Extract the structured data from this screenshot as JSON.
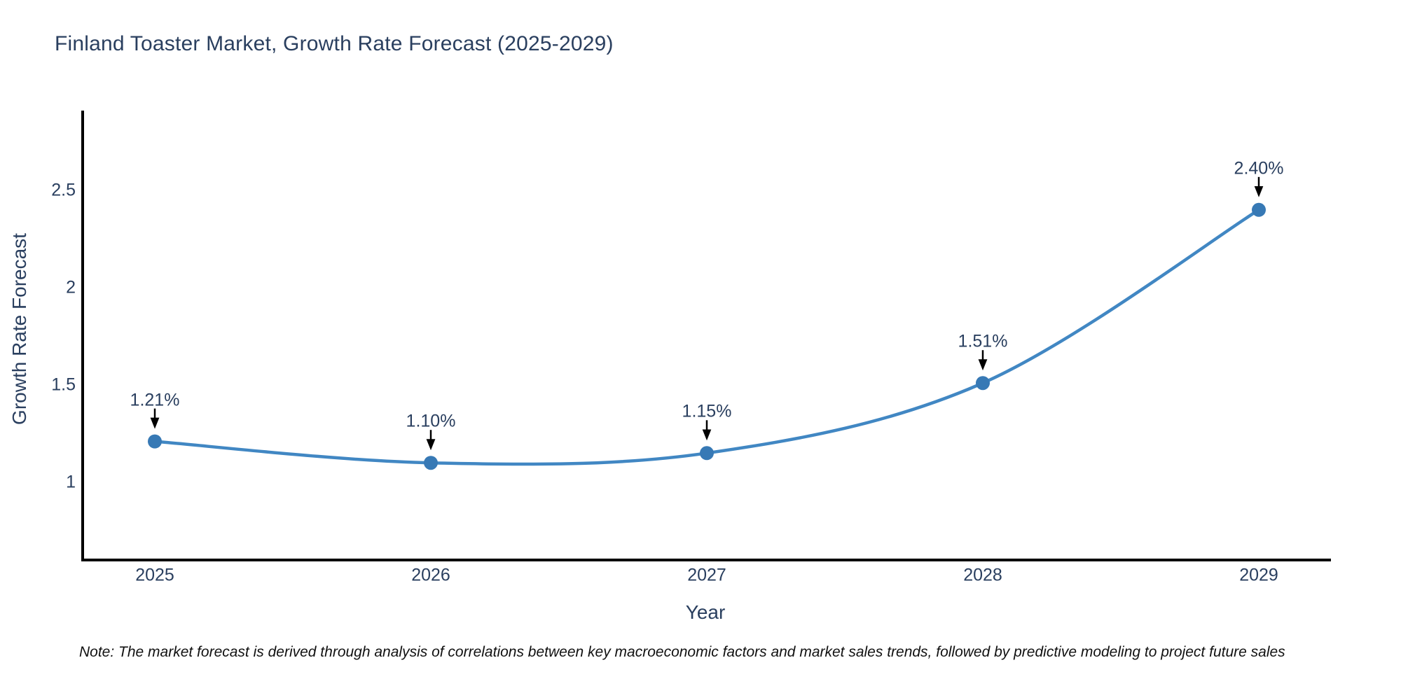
{
  "chart_data": {
    "type": "line",
    "title": "Finland Toaster Market, Growth Rate Forecast (2025-2029)",
    "xlabel": "Year",
    "ylabel": "Growth Rate Forecast",
    "x": [
      2025,
      2026,
      2027,
      2028,
      2029
    ],
    "y": [
      1.21,
      1.1,
      1.15,
      1.51,
      2.4
    ],
    "point_labels": [
      "1.21%",
      "1.10%",
      "1.15%",
      "1.51%",
      "2.40%"
    ],
    "line_shape": "spline",
    "grid": false,
    "legend": "none",
    "xaxis": {
      "tick_labels": [
        "2025",
        "2026",
        "2027",
        "2028",
        "2029"
      ],
      "tick_values": [
        2025,
        2026,
        2027,
        2028,
        2029
      ]
    },
    "yaxis": {
      "tick_labels": [
        "2.5",
        "2",
        "1.5",
        "1"
      ],
      "tick_values": [
        2.5,
        2.0,
        1.5,
        1.0
      ],
      "range": [
        0.6,
        2.91
      ]
    },
    "note": "Note: The market forecast is derived through analysis of correlations between key macroeconomic factors and market sales trends, followed by predictive modeling to project future sales",
    "colors": {
      "line": "#4187c3",
      "marker": "#3779b5",
      "text": "#2a3f5f",
      "arrow": "#000000",
      "axis": "#000000",
      "background": "#ffffff"
    }
  }
}
